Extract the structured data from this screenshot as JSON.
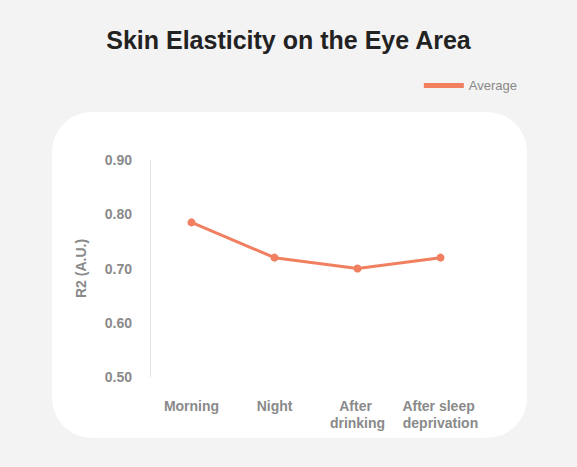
{
  "chart_data": {
    "type": "line",
    "title": "Skin Elasticity on the Eye Area",
    "y_label": "R2 (A.U.)",
    "categories": [
      "Morning",
      "Night",
      "After drinking",
      "After sleep deprivation"
    ],
    "series": [
      {
        "name": "Average",
        "color": "#f0805f",
        "marker": "circle",
        "values": [
          0.785,
          0.72,
          0.7,
          0.72
        ]
      }
    ],
    "ylim": [
      0.5,
      0.9
    ],
    "yticks": [
      {
        "value": 0.5,
        "label": "0.50"
      },
      {
        "value": 0.6,
        "label": "0.60"
      },
      {
        "value": 0.7,
        "label": "0.70"
      },
      {
        "value": 0.8,
        "label": "0.80"
      },
      {
        "value": 0.9,
        "label": "0.90"
      }
    ],
    "grid": false,
    "legend": "top-right"
  }
}
